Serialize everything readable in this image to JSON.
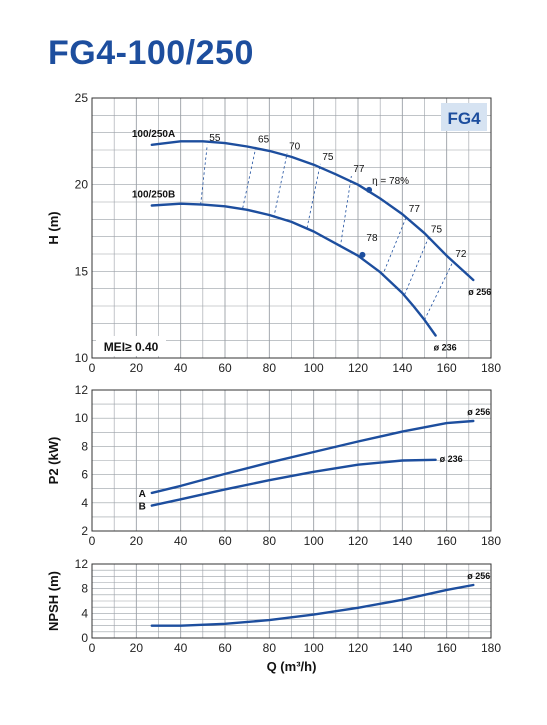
{
  "title": "FG4-100/250",
  "colors": {
    "title": "#1d4e9e",
    "curve": "#1d4e9e",
    "grid": "#9aa0a6",
    "badge_bg": "#d6e3f2"
  },
  "chart_data": [
    {
      "type": "line",
      "panel": "head",
      "badge": "FG4",
      "mei_label": "MEI≥ 0.40",
      "xlabel": "",
      "ylabel": "H (m)",
      "xlim": [
        0,
        180
      ],
      "ylim": [
        10,
        25
      ],
      "xticks": [
        "0",
        "20",
        "40",
        "60",
        "80",
        "100",
        "120",
        "140",
        "160",
        "180"
      ],
      "yticks": [
        "10",
        "15",
        "20",
        "25"
      ],
      "grid": true,
      "series": [
        {
          "name": "100/250A",
          "end_label": "ø 256",
          "x": [
            27,
            40,
            50,
            60,
            70,
            80,
            90,
            100,
            110,
            120,
            130,
            140,
            150,
            160,
            172
          ],
          "y": [
            22.3,
            22.5,
            22.5,
            22.4,
            22.2,
            21.95,
            21.6,
            21.15,
            20.6,
            20.0,
            19.2,
            18.3,
            17.2,
            15.9,
            14.5
          ]
        },
        {
          "name": "100/250B",
          "end_label": "ø 236",
          "x": [
            27,
            40,
            50,
            60,
            70,
            80,
            90,
            100,
            110,
            120,
            130,
            140,
            145,
            150,
            155
          ],
          "y": [
            18.8,
            18.9,
            18.85,
            18.75,
            18.55,
            18.25,
            17.85,
            17.3,
            16.6,
            15.9,
            14.95,
            13.75,
            13.0,
            12.2,
            11.3
          ]
        }
      ],
      "efficiency_lines": [
        {
          "label": "55",
          "from": [
            49,
            18.85
          ],
          "to": [
            52,
            22.3
          ]
        },
        {
          "label": "65",
          "from": [
            68,
            18.65
          ],
          "to": [
            74,
            22.2
          ]
        },
        {
          "label": "70",
          "from": [
            82,
            18.1
          ],
          "to": [
            88,
            21.8
          ]
        },
        {
          "label": "75",
          "from": [
            97,
            17.5
          ],
          "to": [
            103,
            21.2
          ]
        },
        {
          "label": "77",
          "from": [
            112,
            16.4
          ],
          "to": [
            117,
            20.5
          ]
        },
        {
          "label": "77",
          "from": [
            131,
            14.75
          ],
          "to": [
            142,
            18.2
          ]
        },
        {
          "label": "75",
          "from": [
            141,
            13.65
          ],
          "to": [
            152,
            17.0
          ]
        },
        {
          "label": "72",
          "from": [
            150,
            12.2
          ],
          "to": [
            163,
            15.6
          ]
        }
      ],
      "efficiency_points": [
        {
          "label": "η = 78%",
          "x": 125,
          "y": 19.7
        },
        {
          "label": "78",
          "x": 122,
          "y": 15.95
        }
      ]
    },
    {
      "type": "line",
      "panel": "power",
      "ylabel": "P2 (kW)",
      "xlim": [
        0,
        180
      ],
      "ylim": [
        2,
        12
      ],
      "xticks": [
        "0",
        "20",
        "40",
        "60",
        "80",
        "100",
        "120",
        "140",
        "160",
        "180"
      ],
      "yticks": [
        "2",
        "4",
        "6",
        "8",
        "10",
        "12"
      ],
      "grid": true,
      "series": [
        {
          "name": "A",
          "end_label": "ø 256",
          "x": [
            27,
            40,
            60,
            80,
            100,
            120,
            140,
            160,
            172
          ],
          "y": [
            4.7,
            5.2,
            6.05,
            6.85,
            7.6,
            8.35,
            9.05,
            9.65,
            9.8
          ]
        },
        {
          "name": "B",
          "end_label": "ø 236",
          "x": [
            27,
            40,
            60,
            80,
            100,
            120,
            140,
            155
          ],
          "y": [
            3.8,
            4.25,
            4.95,
            5.6,
            6.2,
            6.7,
            7.0,
            7.05
          ]
        }
      ]
    },
    {
      "type": "line",
      "panel": "npsh",
      "xlabel": "Q (m³/h)",
      "ylabel": "NPSH (m)",
      "xlim": [
        0,
        180
      ],
      "ylim": [
        0,
        12
      ],
      "xticks": [
        "0",
        "20",
        "40",
        "60",
        "80",
        "100",
        "120",
        "140",
        "160",
        "180"
      ],
      "yticks": [
        "0",
        "4",
        "8",
        "12"
      ],
      "grid": true,
      "series": [
        {
          "end_label": "ø 256",
          "x": [
            27,
            40,
            60,
            80,
            100,
            120,
            140,
            160,
            172
          ],
          "y": [
            2.0,
            2.0,
            2.3,
            2.9,
            3.8,
            4.9,
            6.2,
            7.8,
            8.6
          ]
        }
      ]
    }
  ]
}
